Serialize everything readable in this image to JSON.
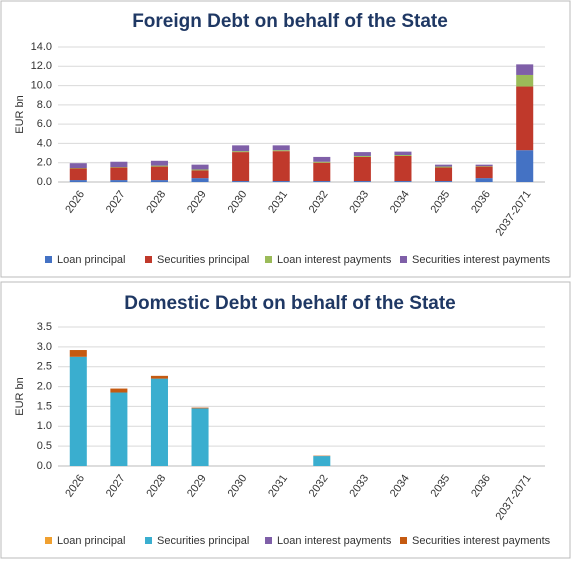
{
  "chart_data": [
    {
      "type": "bar",
      "stacked": true,
      "title": "Foreign Debt on behalf of the State",
      "y_label": "EUR bn",
      "categories": [
        "2026",
        "2027",
        "2028",
        "2029",
        "2030",
        "2031",
        "2032",
        "2033",
        "2034",
        "2035",
        "2036",
        "2037-2071"
      ],
      "ylim": [
        0,
        14
      ],
      "yticks": [
        {
          "value": 0,
          "label": "0.0"
        },
        {
          "value": 2,
          "label": "2.0"
        },
        {
          "value": 4,
          "label": "4.0"
        },
        {
          "value": 6,
          "label": "6.0"
        },
        {
          "value": 8,
          "label": "8.0"
        },
        {
          "value": 10,
          "label": "10.0"
        },
        {
          "value": 12,
          "label": "12.0"
        },
        {
          "value": 14,
          "label": "14.0"
        }
      ],
      "series": [
        {
          "name": "Loan principal",
          "color": "#4472c4",
          "values": [
            0.2,
            0.2,
            0.2,
            0.4,
            0.1,
            0.1,
            0.1,
            0.1,
            0.1,
            0.1,
            0.4,
            3.3
          ]
        },
        {
          "name": "Securities principal",
          "color": "#c0392b",
          "values": [
            1.2,
            1.3,
            1.4,
            0.8,
            3.0,
            3.1,
            1.9,
            2.5,
            2.6,
            1.4,
            1.2,
            6.6
          ]
        },
        {
          "name": "Loan interest payments",
          "color": "#9bbb59",
          "values": [
            0.05,
            0.05,
            0.1,
            0.1,
            0.1,
            0.1,
            0.1,
            0.1,
            0.1,
            0.1,
            0.05,
            1.2
          ]
        },
        {
          "name": "Securities interest payments",
          "color": "#7f5fa8",
          "values": [
            0.5,
            0.55,
            0.5,
            0.5,
            0.6,
            0.5,
            0.5,
            0.4,
            0.35,
            0.2,
            0.15,
            1.1
          ]
        }
      ]
    },
    {
      "type": "bar",
      "stacked": true,
      "title": "Domestic Debt on behalf of the State",
      "y_label": "EUR bn",
      "categories": [
        "2026",
        "2027",
        "2028",
        "2029",
        "2030",
        "2031",
        "2032",
        "2033",
        "2034",
        "2035",
        "2036",
        "2037-2071"
      ],
      "ylim": [
        0,
        3.5
      ],
      "yticks": [
        {
          "value": 0,
          "label": "0.0"
        },
        {
          "value": 0.5,
          "label": "0.5"
        },
        {
          "value": 1,
          "label": "1.0"
        },
        {
          "value": 1.5,
          "label": "1.5"
        },
        {
          "value": 2,
          "label": "2.0"
        },
        {
          "value": 2.5,
          "label": "2.5"
        },
        {
          "value": 3,
          "label": "3.0"
        },
        {
          "value": 3.5,
          "label": "3.5"
        }
      ],
      "series": [
        {
          "name": "Loan principal",
          "color": "#f0a030",
          "values": [
            0,
            0,
            0,
            0,
            0,
            0,
            0,
            0,
            0,
            0,
            0,
            0
          ]
        },
        {
          "name": "Securities principal",
          "color": "#3aaecf",
          "values": [
            2.75,
            1.85,
            2.2,
            1.45,
            0,
            0,
            0.25,
            0,
            0,
            0,
            0,
            0
          ]
        },
        {
          "name": "Loan interest payments",
          "color": "#7f5fa8",
          "values": [
            0,
            0,
            0,
            0,
            0,
            0,
            0,
            0,
            0,
            0,
            0,
            0
          ]
        },
        {
          "name": "Securities interest payments",
          "color": "#c55a11",
          "values": [
            0.17,
            0.1,
            0.07,
            0.02,
            0,
            0,
            0.01,
            0,
            0,
            0,
            0,
            0
          ]
        }
      ]
    }
  ]
}
